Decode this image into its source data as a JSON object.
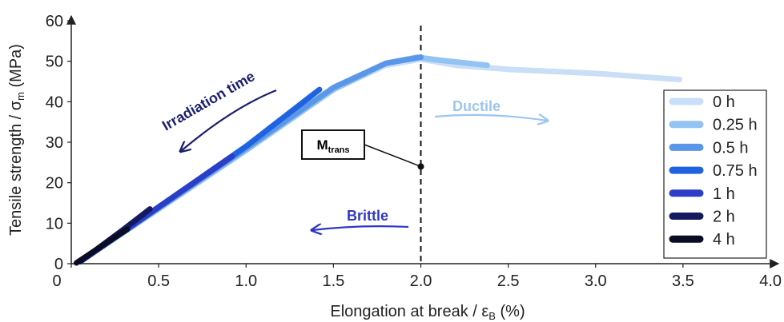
{
  "chart_data": {
    "type": "line",
    "xlabel": "Elongation at break / ε",
    "xlabel_sub": "B",
    "xlabel_unit": " (%)",
    "ylabel": "Tensile strength / σ",
    "ylabel_sub": "m",
    "ylabel_unit": " (MPa)",
    "xlim": [
      0,
      4.0
    ],
    "ylim": [
      0,
      60
    ],
    "xticks": [
      "0",
      "0.5",
      "1.0",
      "1.5",
      "2.0",
      "2.5",
      "3.0",
      "3.5",
      "4.0"
    ],
    "yticks": [
      "0",
      "10",
      "20",
      "30",
      "40",
      "50",
      "60"
    ],
    "grid": false,
    "legend_position": "right",
    "series": [
      {
        "name": "0 h",
        "color": "#c8dff7",
        "points": [
          [
            0.05,
            0.5
          ],
          [
            1.0,
            28
          ],
          [
            1.5,
            43
          ],
          [
            1.8,
            49
          ],
          [
            2.0,
            50.5
          ],
          [
            2.2,
            49
          ],
          [
            2.5,
            48
          ],
          [
            3.0,
            47
          ],
          [
            3.48,
            45.5
          ]
        ]
      },
      {
        "name": "0.25 h",
        "color": "#93c3f2",
        "points": [
          [
            0.05,
            0.5
          ],
          [
            1.0,
            28
          ],
          [
            1.5,
            43
          ],
          [
            1.8,
            49.5
          ],
          [
            1.98,
            51
          ],
          [
            2.1,
            50.3
          ],
          [
            2.38,
            49
          ]
        ]
      },
      {
        "name": "0.5 h",
        "color": "#5b97e8",
        "points": [
          [
            0.05,
            0.5
          ],
          [
            1.0,
            28.5
          ],
          [
            1.5,
            43.5
          ],
          [
            1.8,
            49.5
          ],
          [
            2.0,
            51
          ]
        ]
      },
      {
        "name": "0.75 h",
        "color": "#1f63e0",
        "points": [
          [
            0.05,
            0.5
          ],
          [
            0.5,
            14
          ],
          [
            1.0,
            29
          ],
          [
            1.42,
            43
          ]
        ]
      },
      {
        "name": "1 h",
        "color": "#2b3ec7",
        "points": [
          [
            0.05,
            0.5
          ],
          [
            0.5,
            14
          ],
          [
            0.92,
            26.5
          ]
        ]
      },
      {
        "name": "2 h",
        "color": "#141a60",
        "points": [
          [
            0.05,
            0.5
          ],
          [
            0.3,
            8.5
          ],
          [
            0.45,
            13.5
          ]
        ]
      },
      {
        "name": "4 h",
        "color": "#0a0c24",
        "points": [
          [
            0.03,
            0.2
          ],
          [
            0.32,
            8.5
          ]
        ]
      }
    ],
    "transition_line_x": 2.0,
    "marker_point": [
      2.0,
      24
    ],
    "marker_label": "M",
    "marker_label_sub": "trans",
    "annotations": {
      "irradiation": {
        "text": "Irradiation time",
        "color": "#1a1f6e"
      },
      "ductile": {
        "text": "Ductile",
        "color": "#9cc6ef"
      },
      "brittle": {
        "text": "Brittle",
        "color": "#2f39c4"
      }
    }
  }
}
